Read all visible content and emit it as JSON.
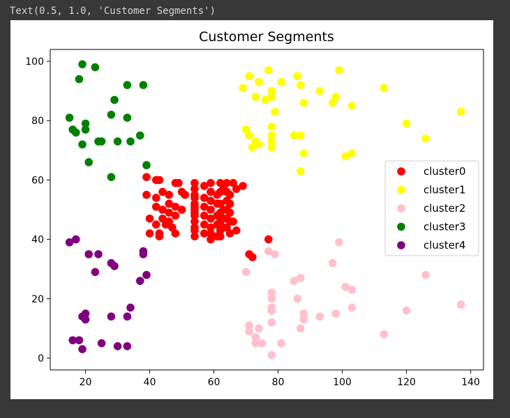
{
  "output": {
    "text": "Text(0.5, 1.0, 'Customer Segments')"
  },
  "chart_data": {
    "type": "scatter",
    "title": "Customer Segments",
    "xlabel": "",
    "ylabel": "",
    "xlim": [
      9,
      144
    ],
    "ylim": [
      -4,
      104
    ],
    "xticks": [
      20,
      40,
      60,
      80,
      100,
      120,
      140
    ],
    "yticks": [
      0,
      20,
      40,
      60,
      80,
      100
    ],
    "grid": false,
    "legend_position": "center-right",
    "series": [
      {
        "name": "cluster0",
        "color": "#ff0000",
        "points": [
          [
            39,
            61
          ],
          [
            42,
            60
          ],
          [
            43,
            60
          ],
          [
            39,
            55
          ],
          [
            42,
            54
          ],
          [
            44,
            56
          ],
          [
            46,
            55
          ],
          [
            48,
            59
          ],
          [
            49,
            59
          ],
          [
            50,
            56
          ],
          [
            51,
            55
          ],
          [
            42,
            51
          ],
          [
            44,
            50
          ],
          [
            46,
            52
          ],
          [
            46,
            49
          ],
          [
            48,
            51
          ],
          [
            50,
            50
          ],
          [
            48,
            48
          ],
          [
            44,
            47
          ],
          [
            46,
            46
          ],
          [
            40,
            47
          ],
          [
            40,
            42
          ],
          [
            42,
            45
          ],
          [
            45,
            45
          ],
          [
            47,
            44
          ],
          [
            43,
            42
          ],
          [
            48,
            42
          ],
          [
            43,
            41
          ],
          [
            54,
            59
          ],
          [
            54,
            57
          ],
          [
            54,
            55
          ],
          [
            54,
            54
          ],
          [
            54,
            52
          ],
          [
            54,
            51
          ],
          [
            54,
            50
          ],
          [
            54,
            49
          ],
          [
            54,
            48
          ],
          [
            54,
            46
          ],
          [
            54,
            44
          ],
          [
            54,
            43
          ],
          [
            54,
            41
          ],
          [
            57,
            58
          ],
          [
            57,
            54
          ],
          [
            57,
            51
          ],
          [
            57,
            48
          ],
          [
            57,
            45
          ],
          [
            57,
            42
          ],
          [
            59,
            59
          ],
          [
            59,
            56
          ],
          [
            59,
            53
          ],
          [
            59,
            50
          ],
          [
            59,
            47
          ],
          [
            59,
            44
          ],
          [
            59,
            42
          ],
          [
            59,
            40
          ],
          [
            61,
            55
          ],
          [
            61,
            52
          ],
          [
            61,
            48
          ],
          [
            61,
            45
          ],
          [
            61,
            41
          ],
          [
            62,
            59
          ],
          [
            62,
            56
          ],
          [
            62,
            52
          ],
          [
            62,
            49
          ],
          [
            62,
            46
          ],
          [
            62,
            43
          ],
          [
            62,
            41
          ],
          [
            63,
            57
          ],
          [
            63,
            50
          ],
          [
            63,
            47
          ],
          [
            63,
            44
          ],
          [
            64,
            59
          ],
          [
            64,
            56
          ],
          [
            64,
            53
          ],
          [
            64,
            50
          ],
          [
            64,
            47
          ],
          [
            64,
            44
          ],
          [
            65,
            55
          ],
          [
            65,
            52
          ],
          [
            65,
            49
          ],
          [
            65,
            46
          ],
          [
            65,
            42
          ],
          [
            66,
            59
          ],
          [
            66,
            46
          ],
          [
            67,
            57
          ],
          [
            67,
            43
          ],
          [
            69,
            58
          ],
          [
            77,
            40
          ],
          [
            71,
            35
          ],
          [
            72,
            34
          ]
        ]
      },
      {
        "name": "cluster1",
        "color": "#ffff00",
        "points": [
          [
            71,
            95
          ],
          [
            73,
            88
          ],
          [
            74,
            93
          ],
          [
            76,
            87
          ],
          [
            77,
            97
          ],
          [
            78,
            90
          ],
          [
            78,
            88
          ],
          [
            79,
            83
          ],
          [
            81,
            93
          ],
          [
            86,
            95
          ],
          [
            87,
            92
          ],
          [
            88,
            86
          ],
          [
            93,
            90
          ],
          [
            97,
            86
          ],
          [
            98,
            88
          ],
          [
            99,
            97
          ],
          [
            103,
            85
          ],
          [
            113,
            91
          ],
          [
            120,
            79
          ],
          [
            126,
            74
          ],
          [
            137,
            83
          ],
          [
            69,
            91
          ],
          [
            70,
            77
          ],
          [
            71,
            75
          ],
          [
            72,
            71
          ],
          [
            73,
            73
          ],
          [
            74,
            72
          ],
          [
            78,
            78
          ],
          [
            78,
            75
          ],
          [
            78,
            73
          ],
          [
            78,
            71
          ],
          [
            85,
            75
          ],
          [
            87,
            75
          ],
          [
            87,
            63
          ],
          [
            88,
            69
          ],
          [
            101,
            68
          ],
          [
            103,
            69
          ]
        ]
      },
      {
        "name": "cluster2",
        "color": "#ffc0cb",
        "points": [
          [
            70,
            29
          ],
          [
            71,
            11
          ],
          [
            71,
            9
          ],
          [
            73,
            5
          ],
          [
            73,
            7
          ],
          [
            74,
            10
          ],
          [
            75,
            5
          ],
          [
            77,
            36
          ],
          [
            78,
            22
          ],
          [
            78,
            20
          ],
          [
            78,
            17
          ],
          [
            78,
            16
          ],
          [
            78,
            12
          ],
          [
            78,
            1
          ],
          [
            79,
            35
          ],
          [
            81,
            5
          ],
          [
            85,
            26
          ],
          [
            86,
            20
          ],
          [
            87,
            27
          ],
          [
            87,
            10
          ],
          [
            88,
            15
          ],
          [
            88,
            13
          ],
          [
            93,
            14
          ],
          [
            97,
            32
          ],
          [
            98,
            15
          ],
          [
            99,
            39
          ],
          [
            101,
            24
          ],
          [
            103,
            23
          ],
          [
            103,
            17
          ],
          [
            113,
            8
          ],
          [
            120,
            16
          ],
          [
            126,
            28
          ],
          [
            137,
            18
          ]
        ]
      },
      {
        "name": "cluster3",
        "color": "#008000",
        "points": [
          [
            15,
            81
          ],
          [
            16,
            77
          ],
          [
            17,
            76
          ],
          [
            18,
            94
          ],
          [
            19,
            99
          ],
          [
            19,
            72
          ],
          [
            20,
            79
          ],
          [
            20,
            77
          ],
          [
            21,
            66
          ],
          [
            23,
            98
          ],
          [
            24,
            73
          ],
          [
            25,
            73
          ],
          [
            28,
            82
          ],
          [
            28,
            61
          ],
          [
            29,
            87
          ],
          [
            30,
            73
          ],
          [
            33,
            81
          ],
          [
            33,
            92
          ],
          [
            34,
            73
          ],
          [
            37,
            75
          ],
          [
            38,
            92
          ],
          [
            39,
            65
          ]
        ]
      },
      {
        "name": "cluster4",
        "color": "#800080",
        "points": [
          [
            15,
            39
          ],
          [
            16,
            6
          ],
          [
            17,
            40
          ],
          [
            18,
            6
          ],
          [
            19,
            3
          ],
          [
            19,
            14
          ],
          [
            20,
            15
          ],
          [
            20,
            13
          ],
          [
            21,
            35
          ],
          [
            23,
            29
          ],
          [
            24,
            35
          ],
          [
            25,
            5
          ],
          [
            28,
            14
          ],
          [
            28,
            32
          ],
          [
            29,
            31
          ],
          [
            30,
            4
          ],
          [
            33,
            4
          ],
          [
            33,
            14
          ],
          [
            34,
            17
          ],
          [
            37,
            26
          ],
          [
            38,
            35
          ],
          [
            38,
            36
          ],
          [
            39,
            28
          ]
        ]
      }
    ]
  }
}
